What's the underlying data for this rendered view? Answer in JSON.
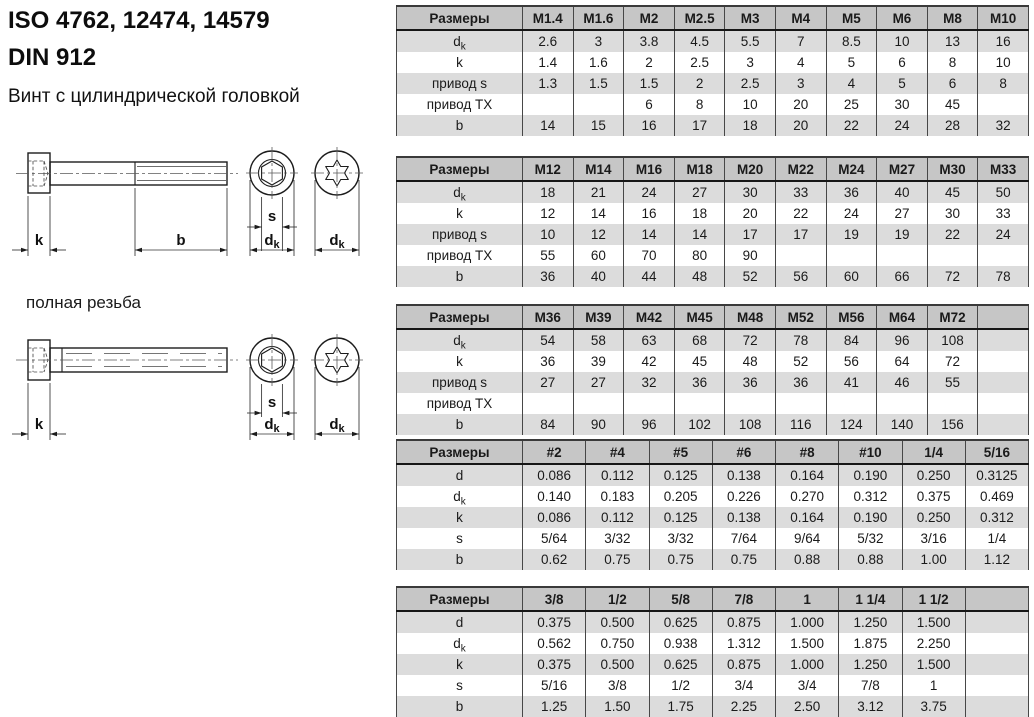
{
  "page": {
    "title_line1": "ISO 4762, 12474, 14579",
    "title_line2": "DIN 912",
    "subtitle": "Винт с цилиндрической головкой",
    "full_thread_label": "полная резьба"
  },
  "drawing": {
    "labels": {
      "k": "k",
      "b": "b",
      "s": "s",
      "d_base": "d",
      "d_sub": "k"
    }
  },
  "colors": {
    "table_header_bg": "#c6c6c6",
    "table_stripe_bg": "#dcdcdc",
    "table_border": "#474747",
    "text": "#1a1a1a"
  },
  "tables": [
    {
      "header_label": "Размеры",
      "columns": [
        "M1.4",
        "M1.6",
        "M2",
        "M2.5",
        "M3",
        "M4",
        "M5",
        "M6",
        "M8",
        "M10"
      ],
      "rows": [
        {
          "label": "d",
          "sub": "k",
          "values": [
            "2.6",
            "3",
            "3.8",
            "4.5",
            "5.5",
            "7",
            "8.5",
            "10",
            "13",
            "16"
          ]
        },
        {
          "label": "k",
          "values": [
            "1.4",
            "1.6",
            "2",
            "2.5",
            "3",
            "4",
            "5",
            "6",
            "8",
            "10"
          ]
        },
        {
          "label": "привод s",
          "values": [
            "1.3",
            "1.5",
            "1.5",
            "2",
            "2.5",
            "3",
            "4",
            "5",
            "6",
            "8"
          ]
        },
        {
          "label": "привод TX",
          "values": [
            "",
            "",
            "6",
            "8",
            "10",
            "20",
            "25",
            "30",
            "45",
            ""
          ]
        },
        {
          "label": "b",
          "values": [
            "14",
            "15",
            "16",
            "17",
            "18",
            "20",
            "22",
            "24",
            "28",
            "32"
          ]
        }
      ]
    },
    {
      "header_label": "Размеры",
      "columns": [
        "M12",
        "M14",
        "M16",
        "M18",
        "M20",
        "M22",
        "M24",
        "M27",
        "M30",
        "M33"
      ],
      "rows": [
        {
          "label": "d",
          "sub": "k",
          "values": [
            "18",
            "21",
            "24",
            "27",
            "30",
            "33",
            "36",
            "40",
            "45",
            "50"
          ]
        },
        {
          "label": "k",
          "values": [
            "12",
            "14",
            "16",
            "18",
            "20",
            "22",
            "24",
            "27",
            "30",
            "33"
          ]
        },
        {
          "label": "привод s",
          "values": [
            "10",
            "12",
            "14",
            "14",
            "17",
            "17",
            "19",
            "19",
            "22",
            "24"
          ]
        },
        {
          "label": "привод TX",
          "values": [
            "55",
            "60",
            "70",
            "80",
            "90",
            "",
            "",
            "",
            "",
            ""
          ]
        },
        {
          "label": "b",
          "values": [
            "36",
            "40",
            "44",
            "48",
            "52",
            "56",
            "60",
            "66",
            "72",
            "78"
          ]
        }
      ]
    },
    {
      "header_label": "Размеры",
      "columns": [
        "M36",
        "M39",
        "M42",
        "M45",
        "M48",
        "M52",
        "M56",
        "M64",
        "M72",
        ""
      ],
      "rows": [
        {
          "label": "d",
          "sub": "k",
          "values": [
            "54",
            "58",
            "63",
            "68",
            "72",
            "78",
            "84",
            "96",
            "108",
            ""
          ]
        },
        {
          "label": "k",
          "values": [
            "36",
            "39",
            "42",
            "45",
            "48",
            "52",
            "56",
            "64",
            "72",
            ""
          ]
        },
        {
          "label": "привод s",
          "values": [
            "27",
            "27",
            "32",
            "36",
            "36",
            "36",
            "41",
            "46",
            "55",
            ""
          ]
        },
        {
          "label": "привод TX",
          "values": [
            "",
            "",
            "",
            "",
            "",
            "",
            "",
            "",
            "",
            ""
          ]
        },
        {
          "label": "b",
          "values": [
            "84",
            "90",
            "96",
            "102",
            "108",
            "116",
            "124",
            "140",
            "156",
            ""
          ]
        }
      ]
    },
    {
      "header_label": "Размеры",
      "columns": [
        "#2",
        "#4",
        "#5",
        "#6",
        "#8",
        "#10",
        "1/4",
        "5/16"
      ],
      "rows": [
        {
          "label": "d",
          "values": [
            "0.086",
            "0.112",
            "0.125",
            "0.138",
            "0.164",
            "0.190",
            "0.250",
            "0.3125"
          ]
        },
        {
          "label": "d",
          "sub": "k",
          "values": [
            "0.140",
            "0.183",
            "0.205",
            "0.226",
            "0.270",
            "0.312",
            "0.375",
            "0.469"
          ]
        },
        {
          "label": "k",
          "values": [
            "0.086",
            "0.112",
            "0.125",
            "0.138",
            "0.164",
            "0.190",
            "0.250",
            "0.312"
          ]
        },
        {
          "label": "s",
          "values": [
            "5/64",
            "3/32",
            "3/32",
            "7/64",
            "9/64",
            "5/32",
            "3/16",
            "1/4"
          ]
        },
        {
          "label": "b",
          "values": [
            "0.62",
            "0.75",
            "0.75",
            "0.75",
            "0.88",
            "0.88",
            "1.00",
            "1.12"
          ]
        }
      ]
    },
    {
      "header_label": "Размеры",
      "columns": [
        "3/8",
        "1/2",
        "5/8",
        "7/8",
        "1",
        "1 1/4",
        "1 1/2",
        ""
      ],
      "rows": [
        {
          "label": "d",
          "values": [
            "0.375",
            "0.500",
            "0.625",
            "0.875",
            "1.000",
            "1.250",
            "1.500",
            ""
          ]
        },
        {
          "label": "d",
          "sub": "k",
          "values": [
            "0.562",
            "0.750",
            "0.938",
            "1.312",
            "1.500",
            "1.875",
            "2.250",
            ""
          ]
        },
        {
          "label": "k",
          "values": [
            "0.375",
            "0.500",
            "0.625",
            "0.875",
            "1.000",
            "1.250",
            "1.500",
            ""
          ]
        },
        {
          "label": "s",
          "values": [
            "5/16",
            "3/8",
            "1/2",
            "3/4",
            "3/4",
            "7/8",
            "1",
            ""
          ]
        },
        {
          "label": "b",
          "values": [
            "1.25",
            "1.50",
            "1.75",
            "2.25",
            "2.50",
            "3.12",
            "3.75",
            ""
          ]
        }
      ]
    }
  ]
}
